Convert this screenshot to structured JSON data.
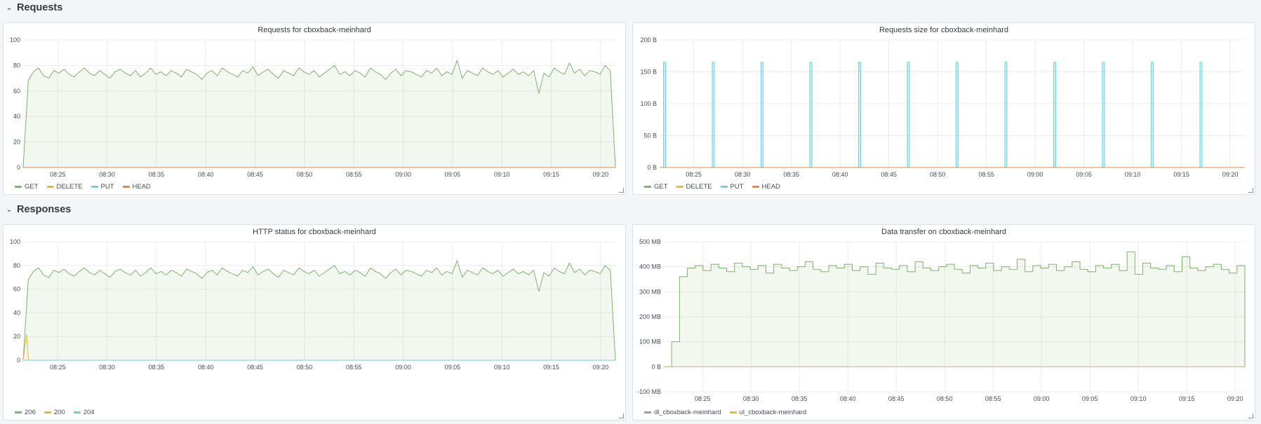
{
  "rows": [
    {
      "title": "Requests"
    },
    {
      "title": "Responses"
    }
  ],
  "panels": [
    {
      "title": "Requests for cboxback-meinhard",
      "legend": [
        {
          "name": "GET",
          "color": "#7eb26d"
        },
        {
          "name": "DELETE",
          "color": "#eab839"
        },
        {
          "name": "PUT",
          "color": "#6ed0e0"
        },
        {
          "name": "HEAD",
          "color": "#ef843c"
        }
      ]
    },
    {
      "title": "Requests size for cboxback-meinhard",
      "legend": [
        {
          "name": "GET",
          "color": "#7eb26d"
        },
        {
          "name": "DELETE",
          "color": "#eab839"
        },
        {
          "name": "PUT",
          "color": "#6ed0e0"
        },
        {
          "name": "HEAD",
          "color": "#ef843c"
        }
      ]
    },
    {
      "title": "HTTP status for cboxback-meinhard",
      "legend": [
        {
          "name": "206",
          "color": "#7eb26d"
        },
        {
          "name": "200",
          "color": "#eab839"
        },
        {
          "name": "204",
          "color": "#6ed0e0"
        }
      ]
    },
    {
      "title": "Data transfer on cboxback-meinhard",
      "legend": [
        {
          "name": "dl_cboxback-meinhard",
          "color": "#7eb26d"
        },
        {
          "name": "ul_cboxback-meinhard",
          "color": "#eab839"
        }
      ]
    }
  ],
  "chart_data": [
    {
      "type": "line",
      "title": "Requests for cboxback-meinhard",
      "x_ticks": [
        "08:25",
        "08:30",
        "08:35",
        "08:40",
        "08:45",
        "08:50",
        "08:55",
        "09:00",
        "09:05",
        "09:10",
        "09:15",
        "09:20"
      ],
      "y_ticks": [
        "0",
        "20",
        "40",
        "60",
        "80",
        "100"
      ],
      "ylim": [
        0,
        100
      ],
      "xlim": [
        "08:21:30",
        "09:21:30"
      ],
      "grid": true,
      "legend_position": "bottom-left",
      "series": [
        {
          "name": "GET",
          "color": "#7eb26d",
          "fill": true,
          "pattern": [
            0,
            68,
            75,
            78,
            72,
            70,
            76,
            74,
            77,
            73,
            71,
            75,
            78,
            74,
            72,
            76,
            73,
            70,
            75,
            77,
            74,
            72,
            76,
            71,
            74,
            78,
            73,
            75,
            72,
            76,
            74,
            71,
            77,
            75,
            73,
            69,
            74,
            76,
            72,
            78,
            75,
            73,
            71,
            76,
            74,
            79,
            72,
            75,
            77,
            73,
            70,
            76,
            74,
            72,
            78,
            75,
            73,
            76,
            71,
            74,
            77,
            80,
            73,
            75,
            72,
            76,
            74,
            71,
            78,
            75,
            73,
            69,
            74,
            77,
            72,
            76,
            75,
            73,
            71,
            76,
            74,
            78,
            72,
            75,
            73,
            84,
            70,
            76,
            74,
            72,
            78,
            75,
            73,
            76,
            71,
            74,
            77,
            73,
            75,
            72,
            76,
            58,
            74,
            71,
            78,
            75,
            73,
            82,
            74,
            77,
            72,
            76,
            75,
            73,
            80,
            76,
            0
          ]
        },
        {
          "name": "DELETE",
          "color": "#eab839",
          "values_constant": 0
        },
        {
          "name": "PUT",
          "color": "#6ed0e0",
          "values_constant": 0
        },
        {
          "name": "HEAD",
          "color": "#ef843c",
          "values_constant": 0
        }
      ]
    },
    {
      "type": "bar",
      "title": "Requests size for cboxback-meinhard",
      "x_ticks": [
        "08:25",
        "08:30",
        "08:35",
        "08:40",
        "08:45",
        "08:50",
        "08:55",
        "09:00",
        "09:05",
        "09:10",
        "09:15",
        "09:20"
      ],
      "y_ticks": [
        "0 B",
        "50 B",
        "100 B",
        "150 B",
        "200 B"
      ],
      "ylim": [
        0,
        200
      ],
      "xlim": [
        "08:21:30",
        "09:21:30"
      ],
      "grid": true,
      "legend_position": "bottom-left",
      "series": [
        {
          "name": "PUT",
          "color": "#6ed0e0",
          "points": [
            {
              "x": "08:22",
              "y": 165
            },
            {
              "x": "08:27",
              "y": 165
            },
            {
              "x": "08:32",
              "y": 165
            },
            {
              "x": "08:37",
              "y": 165
            },
            {
              "x": "08:42",
              "y": 165
            },
            {
              "x": "08:47",
              "y": 165
            },
            {
              "x": "08:52",
              "y": 165
            },
            {
              "x": "08:57",
              "y": 165
            },
            {
              "x": "09:02",
              "y": 165
            },
            {
              "x": "09:07",
              "y": 165
            },
            {
              "x": "09:12",
              "y": 165
            },
            {
              "x": "09:17",
              "y": 165
            }
          ]
        },
        {
          "name": "GET",
          "color": "#7eb26d",
          "values_constant": 0
        },
        {
          "name": "DELETE",
          "color": "#eab839",
          "values_constant": 0
        },
        {
          "name": "HEAD",
          "color": "#ef843c",
          "values_constant": 0
        }
      ]
    },
    {
      "type": "line",
      "title": "HTTP status for cboxback-meinhard",
      "x_ticks": [
        "08:25",
        "08:30",
        "08:35",
        "08:40",
        "08:45",
        "08:50",
        "08:55",
        "09:00",
        "09:05",
        "09:10",
        "09:15",
        "09:20"
      ],
      "y_ticks": [
        "0",
        "20",
        "40",
        "60",
        "80",
        "100"
      ],
      "ylim": [
        0,
        100
      ],
      "xlim": [
        "08:21:30",
        "09:21:30"
      ],
      "grid": true,
      "legend_position": "bottom-left",
      "series": [
        {
          "name": "206",
          "color": "#7eb26d",
          "fill": true,
          "pattern": [
            0,
            68,
            75,
            78,
            72,
            70,
            76,
            74,
            77,
            73,
            71,
            75,
            78,
            74,
            72,
            76,
            73,
            70,
            75,
            77,
            74,
            72,
            76,
            71,
            74,
            78,
            73,
            75,
            72,
            76,
            74,
            71,
            77,
            75,
            73,
            69,
            74,
            76,
            72,
            78,
            75,
            73,
            71,
            76,
            74,
            79,
            72,
            75,
            77,
            73,
            70,
            76,
            74,
            72,
            78,
            75,
            73,
            76,
            71,
            74,
            77,
            80,
            73,
            75,
            72,
            76,
            74,
            71,
            78,
            75,
            73,
            69,
            74,
            77,
            72,
            76,
            75,
            73,
            71,
            76,
            74,
            78,
            72,
            75,
            73,
            84,
            70,
            76,
            74,
            72,
            78,
            75,
            73,
            76,
            71,
            74,
            77,
            73,
            75,
            72,
            76,
            58,
            74,
            71,
            78,
            75,
            73,
            82,
            74,
            77,
            72,
            76,
            75,
            73,
            80,
            76,
            0
          ]
        },
        {
          "name": "200",
          "color": "#eab839",
          "spike": {
            "x": "08:21:50",
            "y": 22
          }
        },
        {
          "name": "204",
          "color": "#6ed0e0",
          "values_constant": 0
        }
      ]
    },
    {
      "type": "line",
      "title": "Data transfer on cboxback-meinhard",
      "x_ticks": [
        "08:25",
        "08:30",
        "08:35",
        "08:40",
        "08:45",
        "08:50",
        "08:55",
        "09:00",
        "09:05",
        "09:10",
        "09:15",
        "09:20"
      ],
      "y_ticks": [
        "-100 MB",
        "0 B",
        "100 MB",
        "200 MB",
        "300 MB",
        "400 MB",
        "500 MB"
      ],
      "ylim": [
        -100,
        500
      ],
      "xlim": [
        "08:21",
        "09:21"
      ],
      "grid": true,
      "legend_position": "bottom-left",
      "series": [
        {
          "name": "dl_cboxback-meinhard",
          "color": "#7eb26d",
          "fill": true,
          "step": true,
          "pattern": [
            0,
            100,
            360,
            395,
            405,
            385,
            410,
            395,
            380,
            415,
            400,
            390,
            405,
            375,
            410,
            395,
            385,
            400,
            420,
            390,
            380,
            405,
            395,
            410,
            385,
            400,
            370,
            415,
            395,
            390,
            405,
            380,
            420,
            395,
            385,
            400,
            410,
            390,
            375,
            405,
            395,
            415,
            385,
            400,
            390,
            430,
            380,
            405,
            395,
            410,
            385,
            400,
            420,
            390,
            380,
            405,
            395,
            410,
            385,
            460,
            370,
            415,
            395,
            390,
            405,
            380,
            440,
            395,
            385,
            400,
            410,
            390,
            375,
            405,
            0
          ]
        },
        {
          "name": "ul_cboxback-meinhard",
          "color": "#eab839",
          "values_constant": 0
        }
      ]
    }
  ]
}
